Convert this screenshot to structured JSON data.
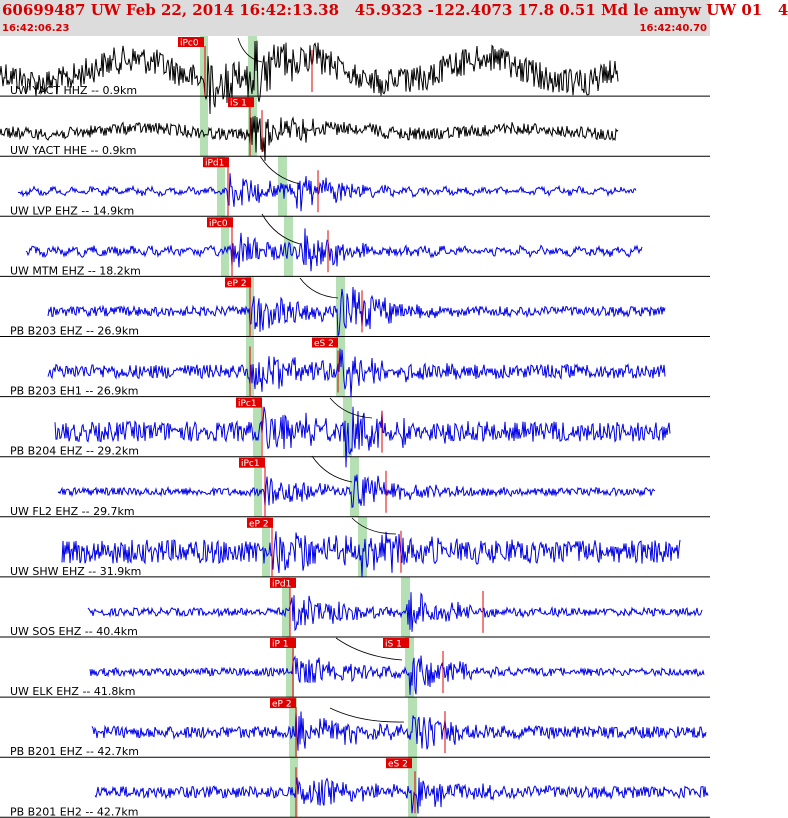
{
  "header": {
    "title": "60699487 UW Feb 22, 2014 16:42:13.38   45.9323 -122.4073 17.8 0.51 Md le amyw UW 01   4",
    "start_time": "16:42:06.23",
    "end_time": "16:42:40.70"
  },
  "colors": {
    "header_bg": "#dcdcdc",
    "header_text": "#d40000",
    "trace_black": "#000000",
    "trace_blue": "#0000e6",
    "pick": "#e00000",
    "window": "#b4e0b4"
  },
  "traces": [
    {
      "label": "UW YACT HHZ -- 0.9km",
      "color": "black",
      "picks": [
        {
          "text": "iPc0",
          "style": "pick"
        }
      ]
    },
    {
      "label": "UW YACT HHE -- 0.9km",
      "color": "black",
      "picks": [
        {
          "text": "iS 1",
          "style": "pick"
        }
      ]
    },
    {
      "label": "UW LVP EHZ -- 14.9km",
      "color": "blue",
      "picks": [
        {
          "text": "iPd1",
          "style": "pick"
        }
      ]
    },
    {
      "label": "UW MTM EHZ -- 18.2km",
      "color": "blue",
      "picks": [
        {
          "text": "iPc0",
          "style": "pick"
        }
      ]
    },
    {
      "label": "PB B203 EHZ -- 26.9km",
      "color": "blue",
      "picks": [
        {
          "text": "eP 2",
          "style": "pick"
        }
      ]
    },
    {
      "label": "PB B203 EH1 -- 26.9km",
      "color": "blue",
      "picks": [
        {
          "text": "eS 2",
          "style": "pick"
        }
      ]
    },
    {
      "label": "PB B204 EHZ -- 29.2km",
      "color": "blue",
      "picks": [
        {
          "text": "iPc1",
          "style": "pick"
        }
      ]
    },
    {
      "label": "UW FL2 EHZ -- 29.7km",
      "color": "blue",
      "picks": [
        {
          "text": "iPc1",
          "style": "pick"
        }
      ]
    },
    {
      "label": "UW SHW EHZ -- 31.9km",
      "color": "blue",
      "picks": [
        {
          "text": "eP 2",
          "style": "pick"
        }
      ]
    },
    {
      "label": "UW SOS EHZ -- 40.4km",
      "color": "blue",
      "picks": [
        {
          "text": "iPd1",
          "style": "pick"
        }
      ]
    },
    {
      "label": "UW ELK EHZ -- 41.8km",
      "color": "blue",
      "picks": [
        {
          "text": "iP 1",
          "style": "pick"
        },
        {
          "text": "iS 1",
          "style": "pick"
        }
      ]
    },
    {
      "label": "PB B201 EHZ -- 42.7km",
      "color": "blue",
      "picks": [
        {
          "text": "eP 2",
          "style": "pick"
        }
      ]
    },
    {
      "label": "PB B201 EH2 -- 42.7km",
      "color": "blue",
      "picks": [
        {
          "text": "eS 2",
          "style": "pick"
        }
      ]
    }
  ]
}
